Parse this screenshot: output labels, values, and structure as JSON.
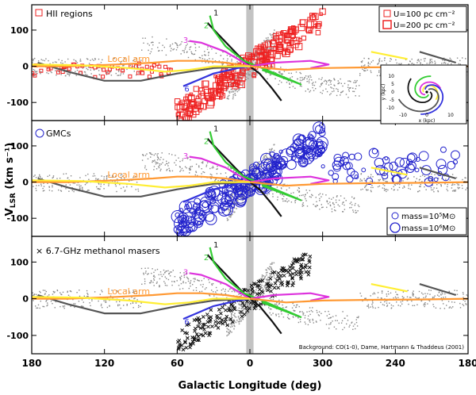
{
  "chart_data": [
    {
      "type": "scatter",
      "panel_label": "HII regions",
      "legend": [
        "U=100 pc cm⁻²",
        "U=200 pc cm⁻²"
      ],
      "ylim": [
        -150,
        170
      ],
      "y_ticks": [
        -100,
        0,
        100
      ],
      "inset": {
        "xlabel": "x (kpc)",
        "ylabel": "y (kpc)",
        "x_ticks": [
          -10,
          0,
          10
        ],
        "y_ticks": [
          -10,
          -5,
          0,
          5,
          10
        ]
      }
    },
    {
      "type": "scatter",
      "panel_label": "GMCs",
      "legend": [
        "mass=10⁵M⊙",
        "mass=10⁶M⊙"
      ],
      "ylim": [
        -150,
        170
      ],
      "y_ticks": [
        -100,
        0,
        100
      ]
    },
    {
      "type": "scatter",
      "panel_label": "× 6.7-GHz methanol masers",
      "ylim": [
        -150,
        170
      ],
      "y_ticks": [
        -100,
        0,
        100
      ],
      "credit": "Background: CO(1-0), Dame, Hartmann & Thaddeus (2001)"
    }
  ],
  "shared": {
    "xlabel": "Galactic Longitude (deg)",
    "ylabel": "V",
    "ylabel_sub": "LSR",
    "ylabel_units": " (km s⁻¹)",
    "x_ticks": [
      {
        "l": 180,
        "label": "180"
      },
      {
        "l": 120,
        "label": "120"
      },
      {
        "l": 60,
        "label": "60"
      },
      {
        "l": 0,
        "label": "0"
      },
      {
        "l": -60,
        "label": "300"
      },
      {
        "l": -120,
        "label": "240"
      },
      {
        "l": -180,
        "label": "180"
      }
    ],
    "arm_labels": {
      "local": "Local arm",
      "n1": "1",
      "n2": "2",
      "n3": "3",
      "n5": "5",
      "n6": "6"
    },
    "arms": [
      {
        "id": "1",
        "color": "#111111",
        "points": [
          [
            35,
            120
          ],
          [
            28,
            95
          ],
          [
            18,
            60
          ],
          [
            8,
            25
          ],
          [
            0,
            0
          ],
          [
            -8,
            -20
          ],
          [
            -18,
            -60
          ],
          [
            -26,
            -95
          ]
        ]
      },
      {
        "id": "2",
        "color": "#33cc33",
        "points": [
          [
            33,
            140
          ],
          [
            30,
            100
          ],
          [
            20,
            55
          ],
          [
            5,
            15
          ],
          [
            -10,
            -5
          ],
          [
            -35,
            -40
          ],
          [
            -42,
            -50
          ],
          [
            -30,
            -35
          ],
          [
            -10,
            -10
          ]
        ]
      },
      {
        "id": "3",
        "color": "#dd33dd",
        "points": [
          [
            50,
            70
          ],
          [
            40,
            65
          ],
          [
            20,
            40
          ],
          [
            0,
            0
          ],
          [
            -20,
            10
          ],
          [
            -50,
            15
          ],
          [
            -65,
            5
          ],
          [
            -50,
            -5
          ]
        ]
      },
      {
        "id": "5",
        "color": "#555555",
        "points": [
          [
            175,
            10
          ],
          [
            150,
            -15
          ],
          [
            120,
            -40
          ],
          [
            90,
            -40
          ],
          [
            60,
            -20
          ],
          [
            30,
            -5
          ],
          [
            0,
            0
          ]
        ]
      },
      {
        "id": "6",
        "color": "#3333dd",
        "points": [
          [
            55,
            -55
          ],
          [
            30,
            -20
          ],
          [
            10,
            -5
          ],
          [
            0,
            0
          ]
        ]
      },
      {
        "id": "local",
        "color": "#ff9933",
        "points": [
          [
            180,
            0
          ],
          [
            150,
            0
          ],
          [
            110,
            5
          ],
          [
            80,
            10
          ],
          [
            60,
            15
          ],
          [
            40,
            15
          ],
          [
            20,
            10
          ],
          [
            0,
            0
          ],
          [
            -30,
            -10
          ],
          [
            -60,
            -5
          ],
          [
            -100,
            -3
          ],
          [
            -140,
            -2
          ],
          [
            -180,
            0
          ]
        ]
      },
      {
        "id": "yellow",
        "color": "#ffee33",
        "points": [
          [
            180,
            5
          ],
          [
            140,
            3
          ],
          [
            100,
            -5
          ],
          [
            70,
            -15
          ],
          [
            50,
            -10
          ],
          [
            30,
            0
          ],
          [
            0,
            0
          ]
        ]
      },
      {
        "id": "yellow_far",
        "color": "#ffee33",
        "points": [
          [
            -100,
            40
          ],
          [
            -130,
            20
          ]
        ]
      },
      {
        "id": "far_gray",
        "color": "#555555",
        "points": [
          [
            -140,
            40
          ],
          [
            -170,
            10
          ]
        ]
      }
    ]
  }
}
